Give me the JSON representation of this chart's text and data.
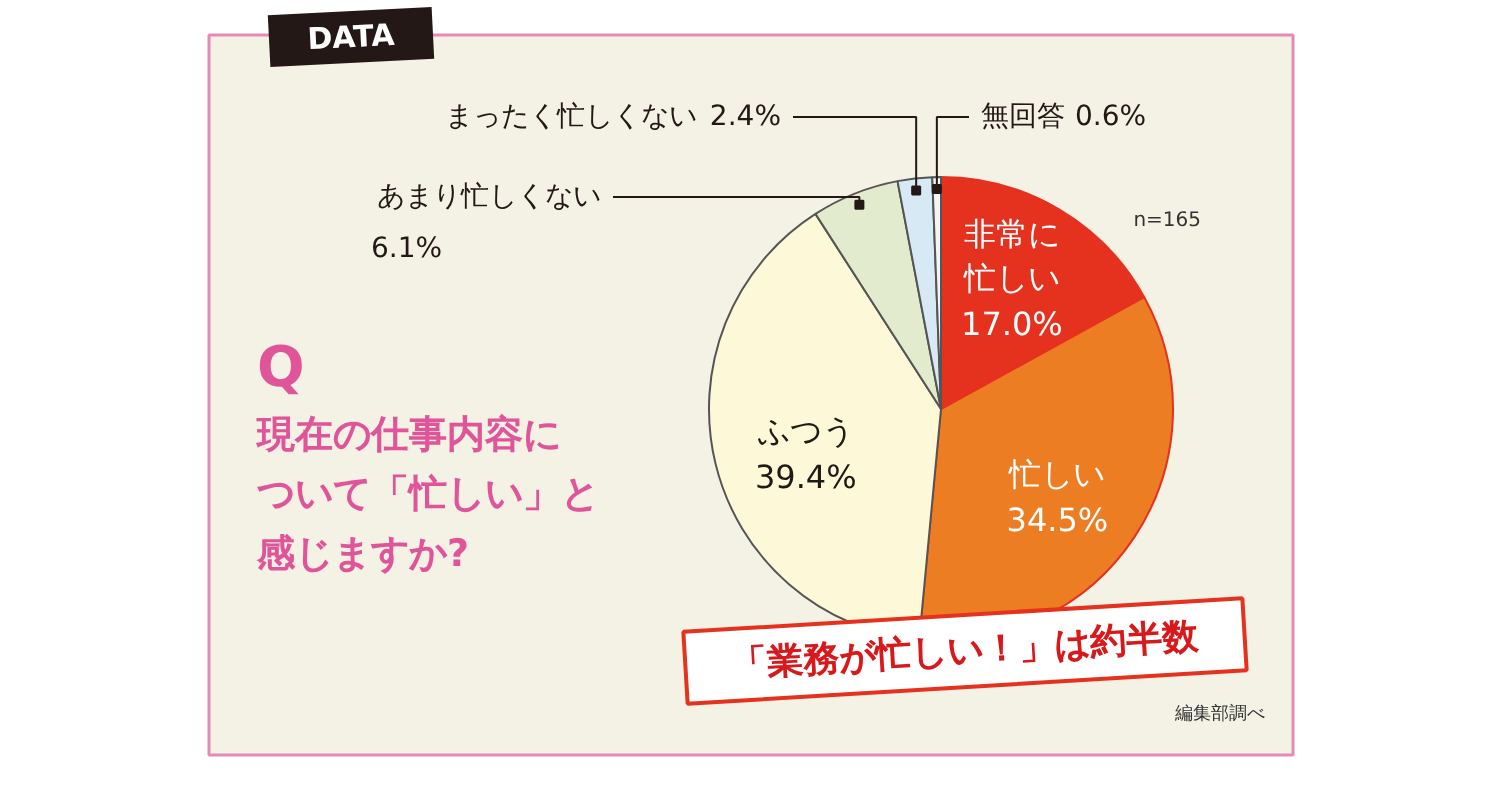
{
  "chart_data": {
    "type": "pie",
    "title": "Q",
    "subtitle": "現在の仕事内容について「忙しい」と感じますか?",
    "categories": [
      "非常に忙しい",
      "忙しい",
      "ふつう",
      "あまり忙しくない",
      "まったく忙しくない",
      "無回答"
    ],
    "values": [
      17.0,
      34.5,
      39.4,
      6.1,
      2.4,
      0.6
    ],
    "colors": [
      "#e5321f",
      "#ec7d22",
      "#fdf8d8",
      "#e3ebcf",
      "#d6e9f5",
      "#f4f4f4"
    ],
    "value_labels": [
      "17.0%",
      "34.5%",
      "39.4%",
      "6.1%",
      "2.4%",
      "0.6%"
    ],
    "annotations": [
      "DATA",
      "n=165",
      "「業務が忙しい！」は約半数",
      "編集部調べ"
    ]
  }
}
